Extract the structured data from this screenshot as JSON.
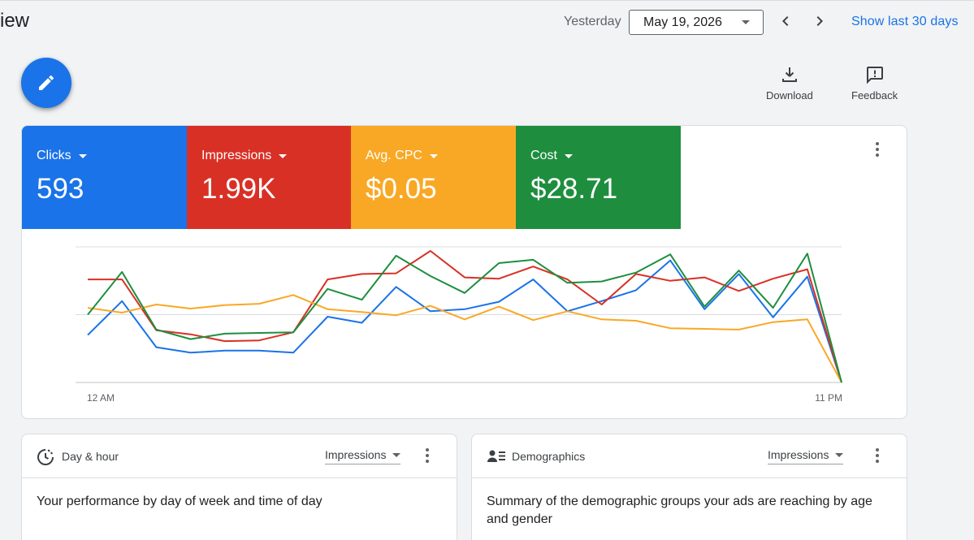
{
  "header": {
    "title": "iew",
    "date_label": "Yesterday",
    "date_value": "May 19, 2026",
    "show_last": "Show last 30 days"
  },
  "toolbar": {
    "download_label": "Download",
    "feedback_label": "Feedback"
  },
  "metrics": [
    {
      "label": "Clicks",
      "value": "593",
      "color": "#1a73e8"
    },
    {
      "label": "Impressions",
      "value": "1.99K",
      "color": "#d93025"
    },
    {
      "label": "Avg. CPC",
      "value": "$0.05",
      "color": "#f9a825"
    },
    {
      "label": "Cost",
      "value": "$28.71",
      "color": "#1e8e3e"
    }
  ],
  "chart_data": {
    "type": "line",
    "x_labels": [
      "12 AM",
      "11 PM"
    ],
    "y_scale": [
      0,
      2
    ],
    "grid": true,
    "series": [
      {
        "color": "#1a73e8",
        "values": [
          0.7,
          1.2,
          0.52,
          0.44,
          0.47,
          0.47,
          0.44,
          0.97,
          0.88,
          1.41,
          1.05,
          1.08,
          1.19,
          1.52,
          1.05,
          1.2,
          1.36,
          1.8,
          1.08,
          1.6,
          0.96,
          1.56,
          0
        ]
      },
      {
        "color": "#d93025",
        "values": [
          1.52,
          1.52,
          0.77,
          0.71,
          0.61,
          0.62,
          0.74,
          1.52,
          1.6,
          1.61,
          1.94,
          1.55,
          1.53,
          1.71,
          1.52,
          1.15,
          1.6,
          1.5,
          1.55,
          1.35,
          1.53,
          1.67,
          0
        ]
      },
      {
        "color": "#f9a825",
        "values": [
          1.1,
          1.03,
          1.15,
          1.09,
          1.14,
          1.16,
          1.29,
          1.08,
          1.04,
          0.99,
          1.13,
          0.93,
          1.12,
          0.92,
          1.05,
          0.93,
          0.91,
          0.8,
          0.79,
          0.78,
          0.89,
          0.93,
          0
        ]
      },
      {
        "color": "#1e8e3e",
        "values": [
          1.0,
          1.63,
          0.78,
          0.64,
          0.72,
          0.73,
          0.74,
          1.38,
          1.22,
          1.87,
          1.57,
          1.32,
          1.76,
          1.81,
          1.47,
          1.49,
          1.62,
          1.89,
          1.12,
          1.65,
          1.1,
          1.9,
          0
        ]
      }
    ]
  },
  "cards": [
    {
      "title": "Day & hour",
      "select": "Impressions",
      "description": "Your performance by day of week and time of day"
    },
    {
      "title": "Demographics",
      "select": "Impressions",
      "description": "Summary of the demographic groups your ads are reaching by age and gender"
    }
  ],
  "icons": [
    "edit-icon",
    "download-icon",
    "feedback-icon",
    "chevron-left-icon",
    "chevron-right-icon",
    "schedule-icon",
    "demographics-icon",
    "more-vert-icon"
  ]
}
